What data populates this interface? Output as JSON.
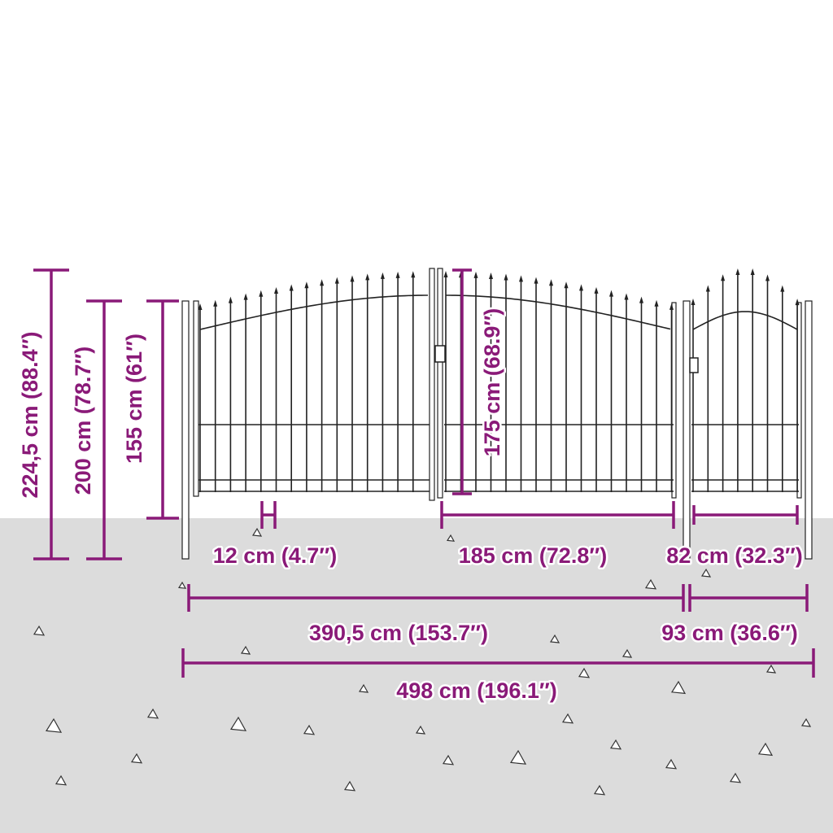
{
  "colors": {
    "dimension": "#8a1a78",
    "ground": "#dcdcdc",
    "fence": "#222222"
  },
  "heights": {
    "total": "224,5 cm (88.4″)",
    "post": "200 cm (78.7″)",
    "panel": "155 cm (61″)",
    "gate": "175 cm (68.9″)"
  },
  "widths": {
    "bar_spacing": "12 cm (4.7″)",
    "double_gate": "185 cm (72.8″)",
    "single_gate": "82 cm (32.3″)",
    "double_section": "390,5 cm (153.7″)",
    "single_section": "93 cm (36.6″)",
    "overall": "498 cm (196.1″)"
  }
}
